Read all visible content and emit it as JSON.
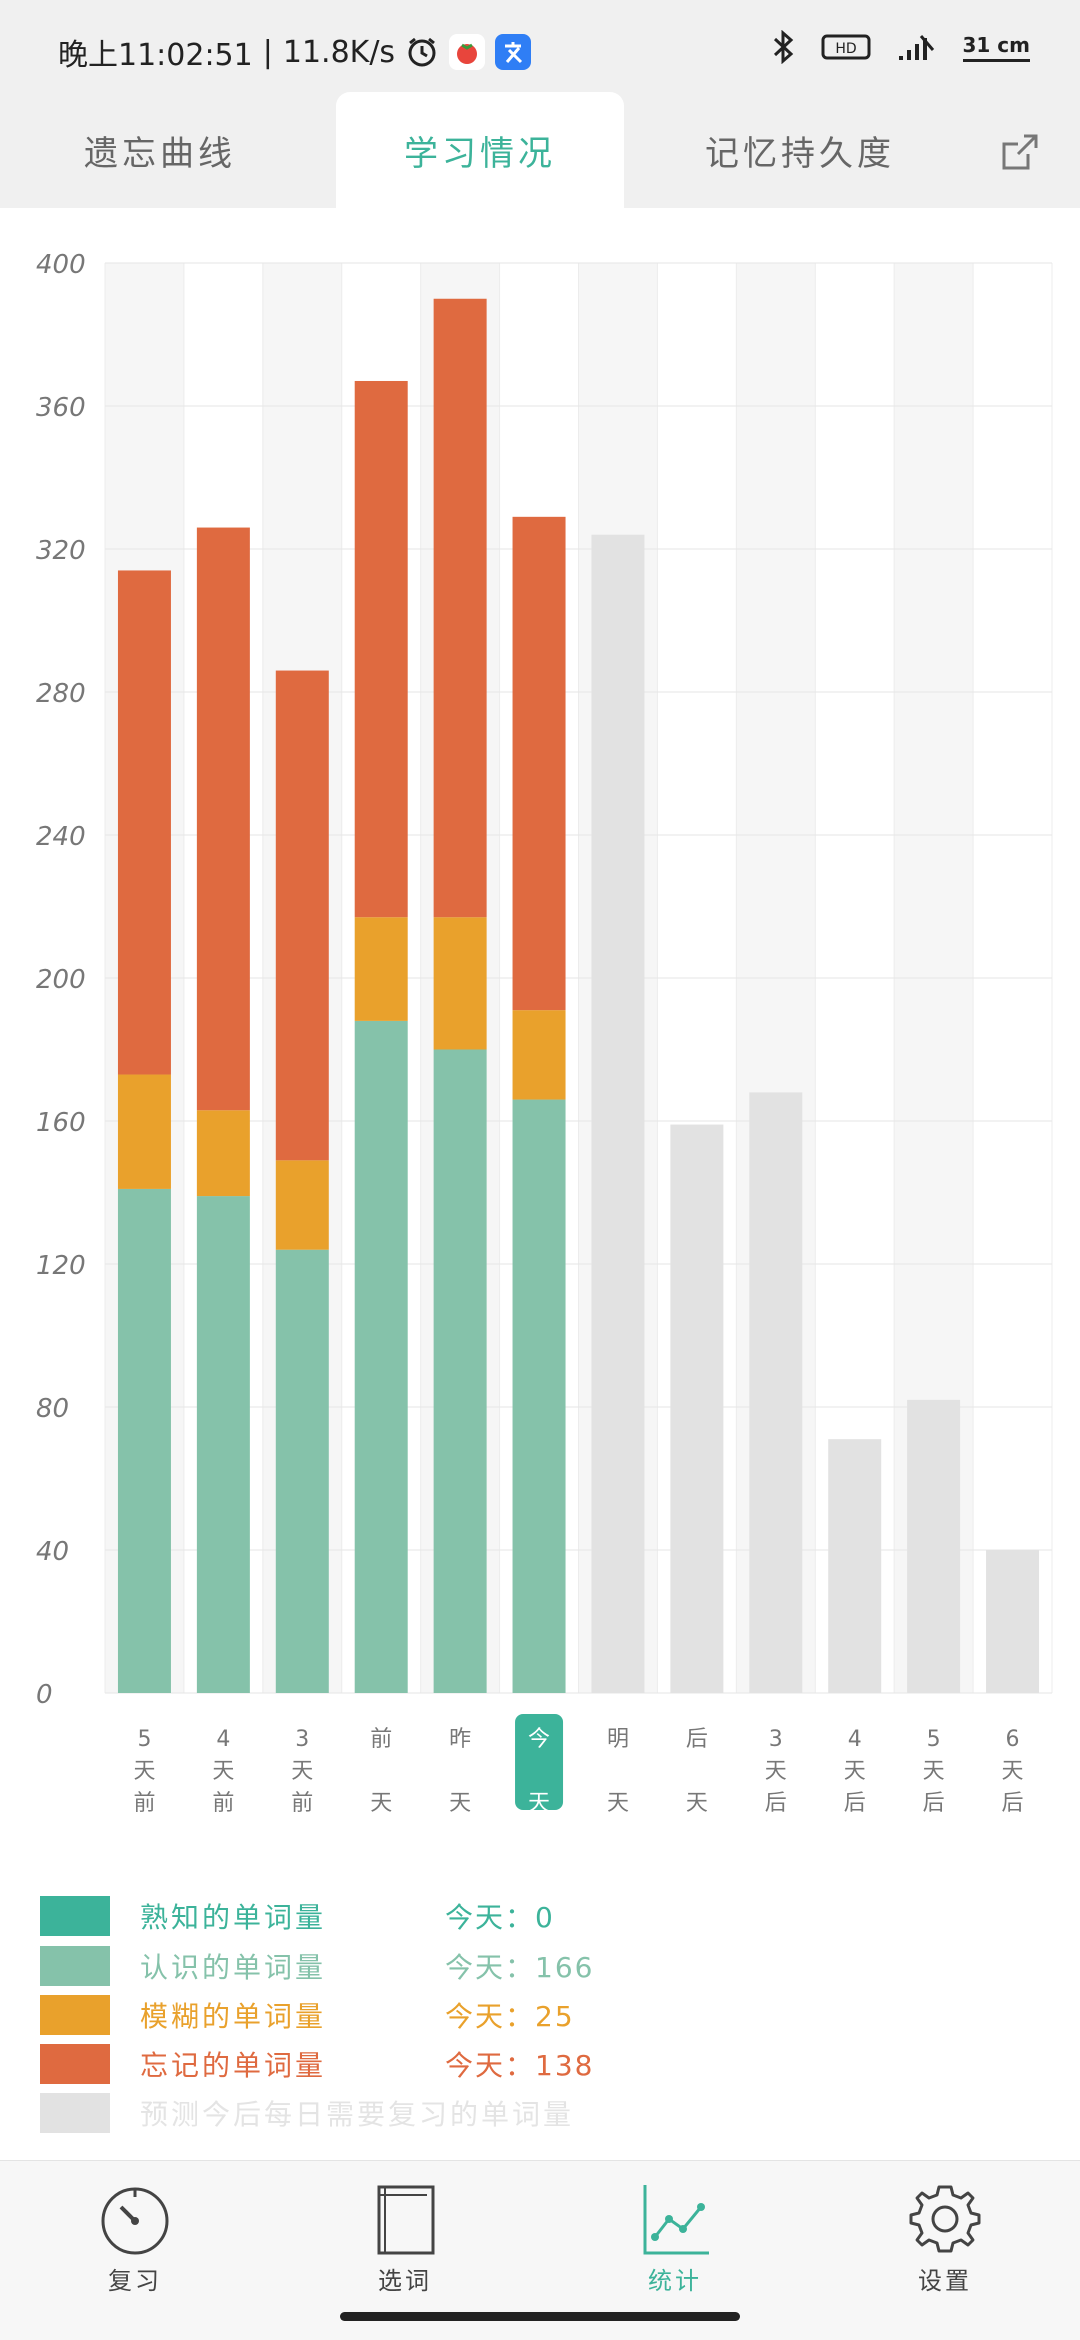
{
  "status_bar": {
    "time": "晚上11:02:51",
    "separator": "|",
    "speed": "11.8K/s",
    "badge_hd": "HD",
    "right_text": "31 cm"
  },
  "tabs": [
    {
      "label": "遗忘曲线",
      "active": false
    },
    {
      "label": "学习情况",
      "active": true
    },
    {
      "label": "记忆持久度",
      "active": false
    }
  ],
  "colors": {
    "accent": "#3cb39a",
    "familiar": "#3cb39a",
    "known": "#85c2aa",
    "fuzzy": "#e9a12c",
    "forgotten": "#df6a40",
    "forecast": "#e2e2e2"
  },
  "chart_data": {
    "type": "bar",
    "stacked": true,
    "ylim": [
      0,
      400
    ],
    "yticks": [
      0,
      40,
      80,
      120,
      160,
      200,
      240,
      280,
      320,
      360,
      400
    ],
    "grid": true,
    "categories": [
      "5天前",
      "4天前",
      "3天前",
      "前天",
      "昨天",
      "今天",
      "明天",
      "后天",
      "3天后",
      "4天后",
      "5天后",
      "6天后"
    ],
    "highlighted_category": "今天",
    "series": [
      {
        "name": "熟知的单词量",
        "color": "#3cb39a",
        "values": [
          0,
          0,
          0,
          0,
          0,
          0,
          0,
          0,
          0,
          0,
          0,
          0
        ]
      },
      {
        "name": "认识的单词量",
        "color": "#85c2aa",
        "values": [
          141,
          139,
          124,
          188,
          180,
          166,
          0,
          0,
          0,
          0,
          0,
          0
        ]
      },
      {
        "name": "模糊的单词量",
        "color": "#e9a12c",
        "values": [
          32,
          24,
          25,
          29,
          37,
          25,
          0,
          0,
          0,
          0,
          0,
          0
        ]
      },
      {
        "name": "忘记的单词量",
        "color": "#df6a40",
        "values": [
          141,
          163,
          137,
          150,
          173,
          138,
          0,
          0,
          0,
          0,
          0,
          0
        ]
      },
      {
        "name": "预测今后每日需要复习的单词量",
        "color": "#e2e2e2",
        "values": [
          0,
          0,
          0,
          0,
          0,
          0,
          324,
          159,
          168,
          71,
          82,
          40
        ]
      }
    ]
  },
  "legend": [
    {
      "label": "熟知的单词量",
      "today_prefix": "今天：",
      "today_value": "0",
      "color": "#3cb39a"
    },
    {
      "label": "认识的单词量",
      "today_prefix": "今天：",
      "today_value": "166",
      "color": "#85c2aa"
    },
    {
      "label": "模糊的单词量",
      "today_prefix": "今天：",
      "today_value": "25",
      "color": "#e9a12c"
    },
    {
      "label": "忘记的单词量",
      "today_prefix": "今天：",
      "today_value": "138",
      "color": "#df6a40"
    },
    {
      "label": "预测今后每日需要复习的单词量",
      "today_prefix": "",
      "today_value": "",
      "color": "#e2e2e2"
    }
  ],
  "bottom_nav": [
    {
      "label": "复习",
      "icon": "dial-icon",
      "active": false
    },
    {
      "label": "选词",
      "icon": "book-icon",
      "active": false
    },
    {
      "label": "统计",
      "icon": "line-chart-icon",
      "active": true
    },
    {
      "label": "设置",
      "icon": "gear-icon",
      "active": false
    }
  ]
}
